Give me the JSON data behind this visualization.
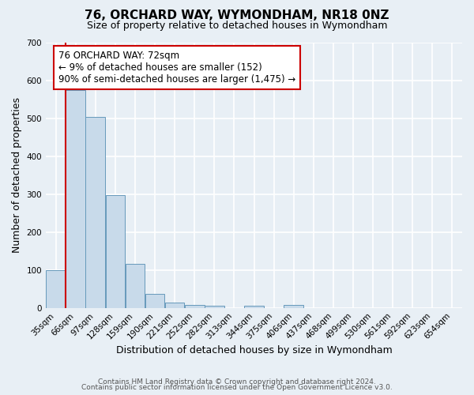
{
  "title": "76, ORCHARD WAY, WYMONDHAM, NR18 0NZ",
  "subtitle": "Size of property relative to detached houses in Wymondham",
  "xlabel": "Distribution of detached houses by size in Wymondham",
  "ylabel": "Number of detached properties",
  "bin_labels": [
    "35sqm",
    "66sqm",
    "97sqm",
    "128sqm",
    "159sqm",
    "190sqm",
    "221sqm",
    "252sqm",
    "282sqm",
    "313sqm",
    "344sqm",
    "375sqm",
    "406sqm",
    "437sqm",
    "468sqm",
    "499sqm",
    "530sqm",
    "561sqm",
    "592sqm",
    "623sqm",
    "654sqm"
  ],
  "bar_values": [
    100,
    575,
    505,
    298,
    117,
    37,
    15,
    8,
    5,
    0,
    5,
    0,
    7,
    0,
    0,
    0,
    0,
    0,
    0,
    0,
    0
  ],
  "bar_color": "#c8daea",
  "bar_edge_color": "#6699bb",
  "ylim": [
    0,
    700
  ],
  "yticks": [
    0,
    100,
    200,
    300,
    400,
    500,
    600,
    700
  ],
  "red_line_x": 0.5,
  "annotation_text": "76 ORCHARD WAY: 72sqm\n← 9% of detached houses are smaller (152)\n90% of semi-detached houses are larger (1,475) →",
  "annotation_box_color": "#ffffff",
  "annotation_box_edge_color": "#cc0000",
  "red_line_color": "#cc0000",
  "footer_line1": "Contains HM Land Registry data © Crown copyright and database right 2024.",
  "footer_line2": "Contains public sector information licensed under the Open Government Licence v3.0.",
  "background_color": "#e8eff5",
  "plot_bg_color": "#e8eff5",
  "grid_color": "#ffffff",
  "title_fontsize": 11,
  "subtitle_fontsize": 9,
  "axis_label_fontsize": 9,
  "tick_fontsize": 7.5,
  "annotation_fontsize": 8.5,
  "footer_fontsize": 6.5
}
